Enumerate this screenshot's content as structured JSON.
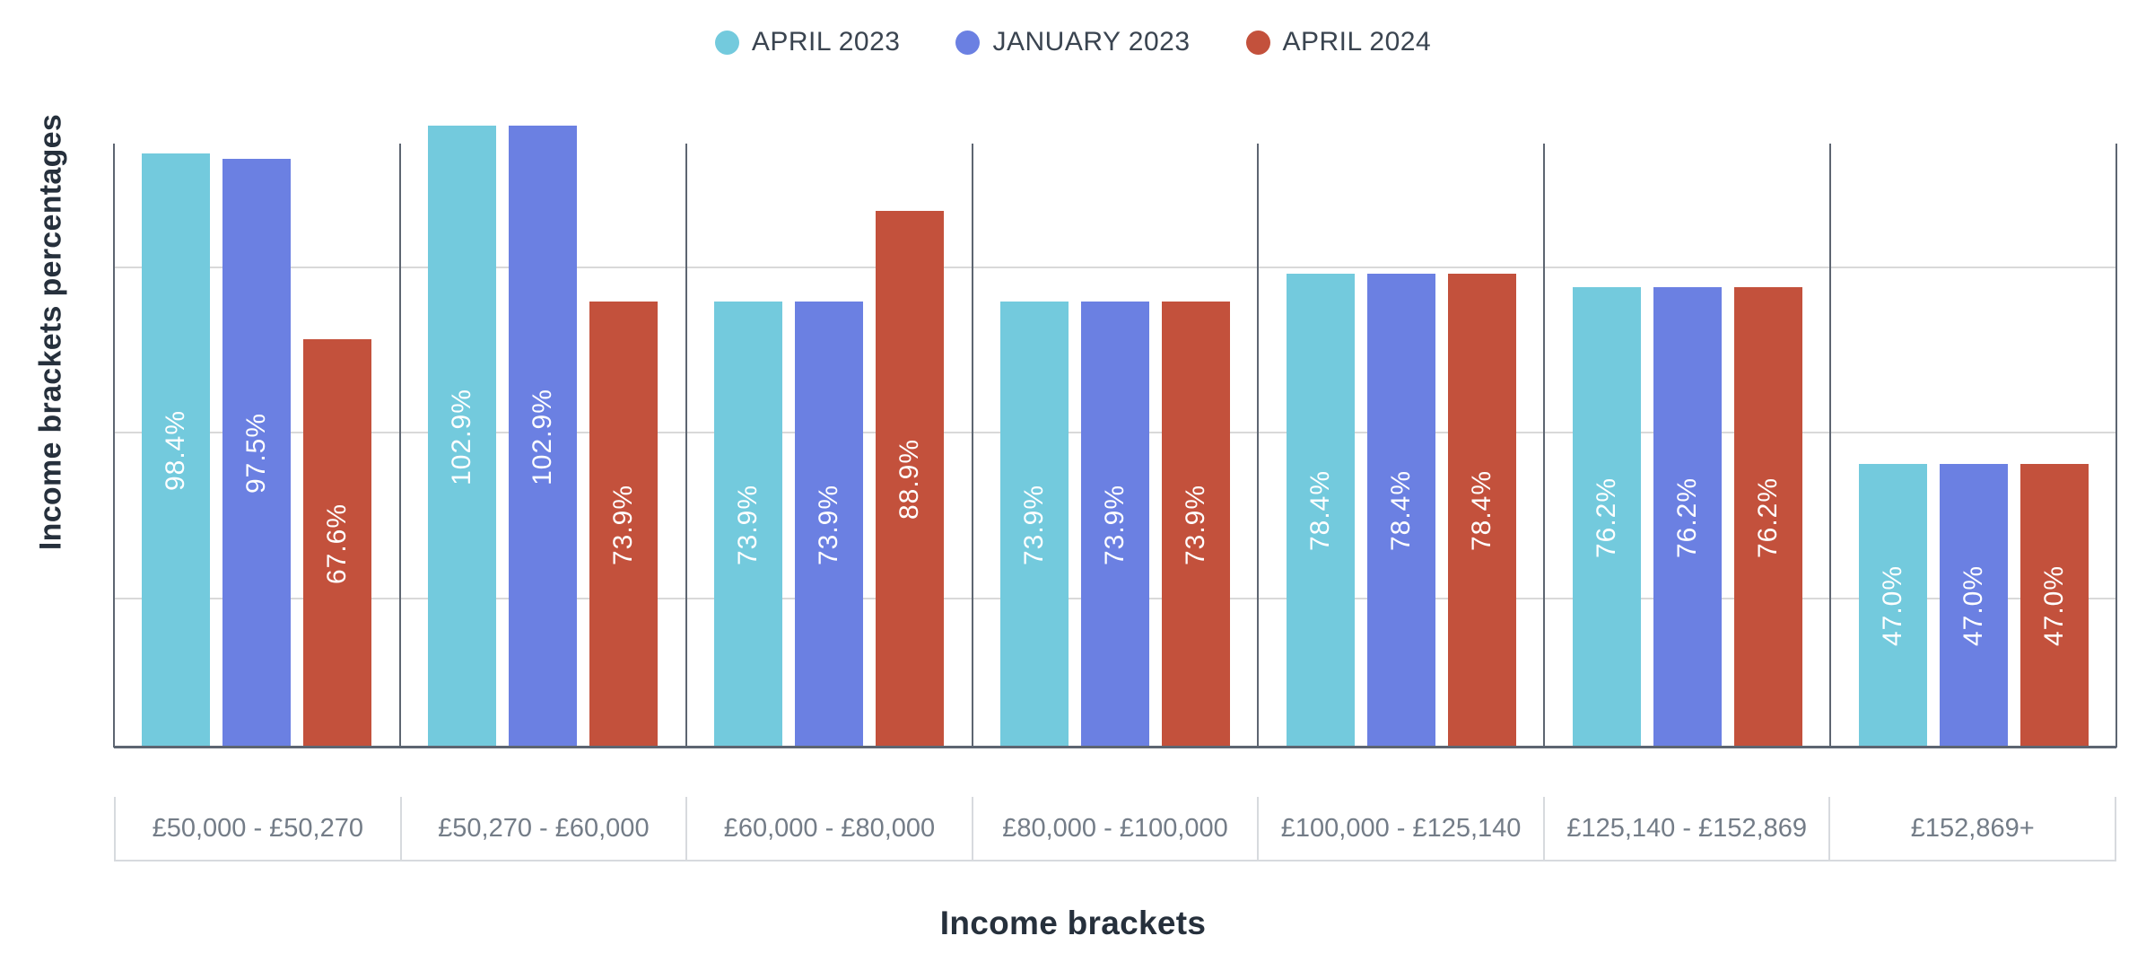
{
  "colors": {
    "april_2023": "#73CADD",
    "january_2023": "#6B80E2",
    "april_2024": "#C3513C",
    "axis_line": "#5D6571",
    "gridline": "#D9D9D9",
    "title_text": "#26303C",
    "legend_text": "#3A4450",
    "category_text": "#737C87",
    "category_border": "#D7DADE",
    "bar_value_text": "#FFFFFF"
  },
  "chart_data": {
    "type": "bar",
    "title": "",
    "xlabel": "Income brackets",
    "ylabel": "Income brackets percentages",
    "categories": [
      "£50,000 - £50,270",
      "£50,270 - £60,000",
      "£60,000 - £80,000",
      "£80,000 - £100,000",
      "£100,000 - £125,140",
      "£125,140 - £152,869",
      "£152,869+"
    ],
    "series": [
      {
        "name": "APRIL 2023",
        "color": "#73CADD",
        "values": [
          98.4,
          102.9,
          73.9,
          73.9,
          78.4,
          76.2,
          47.0
        ],
        "labels": [
          "98.4%",
          "102.9%",
          "73.9%",
          "73.9%",
          "78.4%",
          "76.2%",
          "47.0%"
        ]
      },
      {
        "name": "JANUARY 2023",
        "color": "#6B80E2",
        "values": [
          97.5,
          102.9,
          73.9,
          73.9,
          78.4,
          76.2,
          47.0
        ],
        "labels": [
          "97.5%",
          "102.9%",
          "73.9%",
          "73.9%",
          "78.4%",
          "76.2%",
          "47.0%"
        ]
      },
      {
        "name": "APRIL 2024",
        "color": "#C3513C",
        "values": [
          67.6,
          73.9,
          88.9,
          73.9,
          78.4,
          76.2,
          47.0
        ],
        "labels": [
          "67.6%",
          "73.9%",
          "88.9%",
          "73.9%",
          "78.4%",
          "76.2%",
          "47.0%"
        ]
      }
    ],
    "value_label_format": "{value}%",
    "ylim": [
      0,
      108.9
    ],
    "y_ticks_visible": false,
    "gridlines": true,
    "legend_position": "top"
  }
}
